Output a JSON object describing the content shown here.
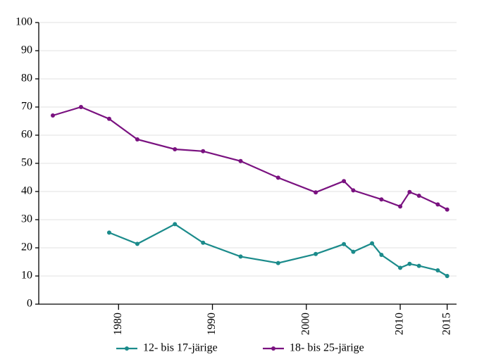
{
  "chart_data": {
    "type": "line",
    "series": [
      {
        "name": "12- bis 17-järige",
        "color": "#1b8b8b",
        "x": [
          1979,
          1982,
          1986,
          1989,
          1993,
          1997,
          2001,
          2004,
          2005,
          2007,
          2008,
          2010,
          2011,
          2012,
          2014,
          2015
        ],
        "values": [
          25.4,
          21.4,
          28.4,
          21.8,
          16.9,
          14.6,
          17.8,
          21.3,
          18.6,
          21.6,
          17.5,
          12.9,
          14.3,
          13.6,
          12.0,
          10.0
        ]
      },
      {
        "name": "18- bis 25-järige",
        "color": "#7a1280",
        "x": [
          1973,
          1976,
          1979,
          1982,
          1986,
          1989,
          1993,
          1997,
          2001,
          2004,
          2005,
          2008,
          2010,
          2011,
          2012,
          2014,
          2015
        ],
        "values": [
          67.0,
          70.0,
          65.8,
          58.5,
          55.0,
          54.3,
          50.8,
          44.9,
          39.7,
          43.7,
          40.4,
          37.2,
          34.7,
          39.8,
          38.5,
          35.4,
          33.6
        ]
      }
    ],
    "xlim": [
      1971.5,
      2016
    ],
    "xticks": [
      1980,
      1990,
      2000,
      2010,
      2015
    ],
    "ylim": [
      0,
      100
    ],
    "yticks": [
      0,
      10,
      20,
      30,
      40,
      50,
      60,
      70,
      80,
      90,
      100
    ],
    "grid": true,
    "legend": "bottom"
  }
}
